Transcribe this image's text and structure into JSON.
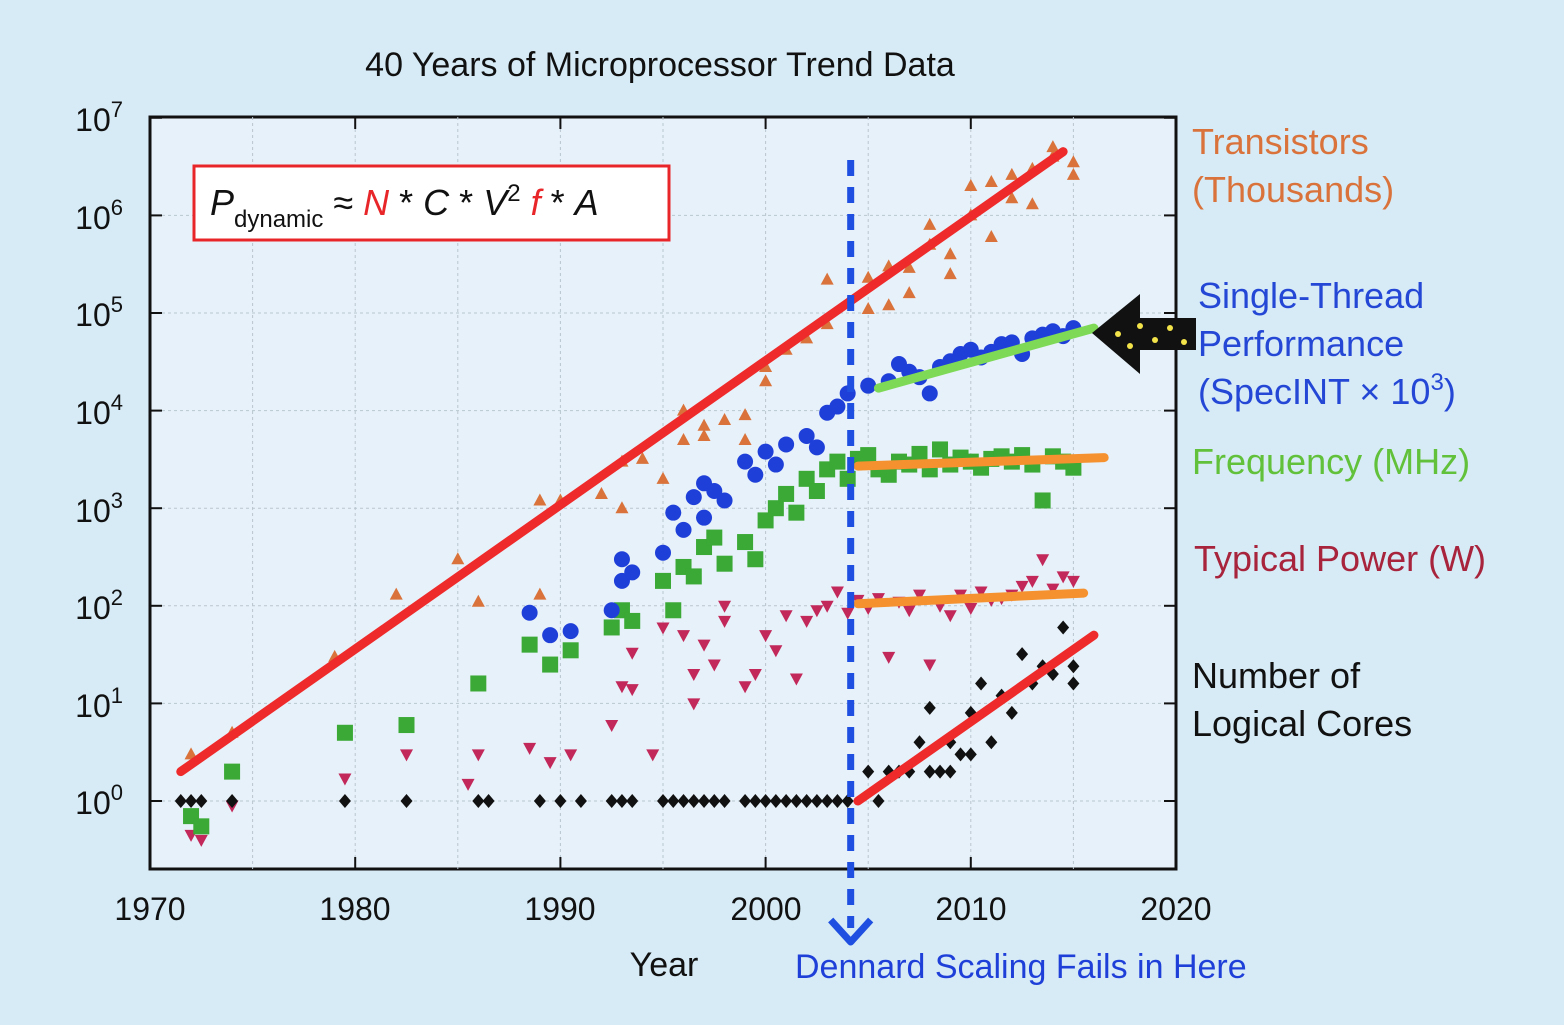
{
  "chart_data": {
    "type": "scatter",
    "title": "40 Years of Microprocessor Trend Data",
    "xlabel": "Year",
    "ylabel": "",
    "xlim": [
      1970,
      2020
    ],
    "ylim": [
      0.3,
      10000000
    ],
    "yscale": "log",
    "grid": true,
    "x_ticks": [
      "1970",
      "1980",
      "1990",
      "2000",
      "2010",
      "2020"
    ],
    "y_ticks": [
      {
        "base": "10",
        "exp": "0",
        "value": 1
      },
      {
        "base": "10",
        "exp": "1",
        "value": 10
      },
      {
        "base": "10",
        "exp": "2",
        "value": 100
      },
      {
        "base": "10",
        "exp": "3",
        "value": 1000
      },
      {
        "base": "10",
        "exp": "4",
        "value": 10000
      },
      {
        "base": "10",
        "exp": "5",
        "value": 100000
      },
      {
        "base": "10",
        "exp": "6",
        "value": 1000000
      },
      {
        "base": "10",
        "exp": "7",
        "value": 10000000
      }
    ],
    "formula": {
      "p": "P",
      "sub": "dynamic",
      "approx": " ≈ ",
      "n": "N",
      "star1": " * ",
      "c": "C",
      "star2": " * ",
      "v": "V",
      "sup": "2",
      "f": " f",
      "star3": " * ",
      "a": "A"
    },
    "series_labels": {
      "transistors": [
        "Transistors",
        "(Thousands)"
      ],
      "single_thread": [
        "Single-Thread",
        "Performance",
        "(SpecINT × 10",
        "3",
        ")"
      ],
      "frequency": [
        "Frequency (MHz)"
      ],
      "power": [
        "Typical Power (W)"
      ],
      "cores": [
        "Number of",
        "Logical Cores"
      ]
    },
    "annotation": "Dennard Scaling Fails in Here",
    "dennard_year": 2004,
    "colors": {
      "transistors": "#d9733b",
      "single_thread": "#1f3fd9",
      "frequency": "#3aa935",
      "power": "#c2285a",
      "cores": "#111111",
      "trend_red": "#ee2a2a",
      "trend_green": "#7ed957",
      "trend_orange": "#f5922f",
      "dennard": "#1f4fe0",
      "transistors_label": "#d9733b",
      "single_thread_label": "#2547d6",
      "frequency_label": "#62c13a",
      "power_label": "#a8233c",
      "cores_label": "#111111",
      "annotation_label": "#1f3fd9"
    },
    "series": [
      {
        "name": "Transistors (Thousands)",
        "marker": "triangle-up",
        "points": [
          [
            1972,
            3
          ],
          [
            1974,
            5
          ],
          [
            1979,
            30
          ],
          [
            1982,
            130
          ],
          [
            1985,
            300
          ],
          [
            1986,
            110
          ],
          [
            1989,
            130
          ],
          [
            1989,
            1200
          ],
          [
            1990,
            1200
          ],
          [
            1992,
            1400
          ],
          [
            1993,
            1000
          ],
          [
            1993,
            3000
          ],
          [
            1994,
            3200
          ],
          [
            1995,
            2000
          ],
          [
            1996,
            5000
          ],
          [
            1996,
            10000
          ],
          [
            1997,
            7000
          ],
          [
            1997,
            5500
          ],
          [
            1998,
            8000
          ],
          [
            1999,
            9000
          ],
          [
            1999,
            5000
          ],
          [
            2000,
            20000
          ],
          [
            2000,
            28000
          ],
          [
            2001,
            42000
          ],
          [
            2002,
            55000
          ],
          [
            2003,
            77000
          ],
          [
            2003,
            220000
          ],
          [
            2004,
            125000
          ],
          [
            2005,
            230000
          ],
          [
            2005,
            110000
          ],
          [
            2006,
            300000
          ],
          [
            2006,
            120000
          ],
          [
            2007,
            160000
          ],
          [
            2007,
            290000
          ],
          [
            2008,
            500000
          ],
          [
            2008,
            800000
          ],
          [
            2009,
            400000
          ],
          [
            2009,
            250000
          ],
          [
            2010,
            1000000
          ],
          [
            2010,
            2000000
          ],
          [
            2011,
            600000
          ],
          [
            2011,
            2200000
          ],
          [
            2012,
            1500000
          ],
          [
            2012,
            2600000
          ],
          [
            2013,
            1300000
          ],
          [
            2013,
            3000000
          ],
          [
            2014,
            5000000
          ],
          [
            2014,
            4000000
          ],
          [
            2015,
            3500000
          ],
          [
            2015,
            2600000
          ]
        ]
      },
      {
        "name": "Single-Thread Performance (SpecINT x 10^3)",
        "marker": "circle",
        "points": [
          [
            1988.5,
            85
          ],
          [
            1989.5,
            50
          ],
          [
            1990.5,
            55
          ],
          [
            1992.5,
            90
          ],
          [
            1993,
            300
          ],
          [
            1993,
            180
          ],
          [
            1993.5,
            220
          ],
          [
            1995,
            350
          ],
          [
            1995.5,
            900
          ],
          [
            1996,
            600
          ],
          [
            1996.5,
            1300
          ],
          [
            1997,
            1800
          ],
          [
            1997,
            800
          ],
          [
            1997.5,
            1500
          ],
          [
            1998,
            1200
          ],
          [
            1999,
            3000
          ],
          [
            1999.5,
            2200
          ],
          [
            2000,
            3800
          ],
          [
            2000.5,
            2800
          ],
          [
            2001,
            4500
          ],
          [
            2002,
            5500
          ],
          [
            2002.5,
            4200
          ],
          [
            2003,
            9500
          ],
          [
            2003.5,
            11000
          ],
          [
            2004,
            15000
          ],
          [
            2005,
            18000
          ],
          [
            2006,
            20000
          ],
          [
            2006.5,
            30000
          ],
          [
            2007,
            25000
          ],
          [
            2007.5,
            22000
          ],
          [
            2008,
            15000
          ],
          [
            2008.5,
            28000
          ],
          [
            2009,
            32000
          ],
          [
            2009.5,
            38000
          ],
          [
            2010,
            42000
          ],
          [
            2010.5,
            35000
          ],
          [
            2011,
            40000
          ],
          [
            2011.5,
            48000
          ],
          [
            2012,
            50000
          ],
          [
            2012.5,
            38000
          ],
          [
            2013,
            55000
          ],
          [
            2013.5,
            60000
          ],
          [
            2014,
            65000
          ],
          [
            2014.5,
            58000
          ],
          [
            2015,
            70000
          ]
        ]
      },
      {
        "name": "Frequency (MHz)",
        "marker": "square",
        "points": [
          [
            1972,
            0.7
          ],
          [
            1972.5,
            0.55
          ],
          [
            1974,
            2
          ],
          [
            1979.5,
            5
          ],
          [
            1982.5,
            6
          ],
          [
            1986,
            16
          ],
          [
            1988.5,
            40
          ],
          [
            1989.5,
            25
          ],
          [
            1990.5,
            35
          ],
          [
            1992.5,
            60
          ],
          [
            1993,
            90
          ],
          [
            1993.5,
            70
          ],
          [
            1995,
            180
          ],
          [
            1995.5,
            90
          ],
          [
            1996,
            250
          ],
          [
            1996.5,
            200
          ],
          [
            1997,
            400
          ],
          [
            1997.5,
            500
          ],
          [
            1998,
            270
          ],
          [
            1999,
            450
          ],
          [
            1999.5,
            300
          ],
          [
            2000,
            750
          ],
          [
            2000.5,
            1000
          ],
          [
            2001,
            1400
          ],
          [
            2001.5,
            900
          ],
          [
            2002,
            2000
          ],
          [
            2002.5,
            1500
          ],
          [
            2003,
            2500
          ],
          [
            2003.5,
            3000
          ],
          [
            2004,
            2000
          ],
          [
            2004.5,
            3200
          ],
          [
            2005,
            3500
          ],
          [
            2005.5,
            2500
          ],
          [
            2006,
            2200
          ],
          [
            2006.5,
            3000
          ],
          [
            2007,
            2800
          ],
          [
            2007.5,
            3600
          ],
          [
            2008,
            2500
          ],
          [
            2008.5,
            4000
          ],
          [
            2009,
            2800
          ],
          [
            2009.5,
            3300
          ],
          [
            2010,
            3000
          ],
          [
            2010.5,
            2600
          ],
          [
            2011,
            3200
          ],
          [
            2011.5,
            3400
          ],
          [
            2012,
            3000
          ],
          [
            2012.5,
            3500
          ],
          [
            2013,
            2800
          ],
          [
            2013.5,
            1200
          ],
          [
            2014,
            3400
          ],
          [
            2014.5,
            3000
          ],
          [
            2015,
            2600
          ]
        ]
      },
      {
        "name": "Typical Power (W)",
        "marker": "triangle-down",
        "points": [
          [
            1972,
            0.45
          ],
          [
            1972.5,
            0.4
          ],
          [
            1974,
            0.9
          ],
          [
            1979.5,
            1.7
          ],
          [
            1982.5,
            3
          ],
          [
            1985.5,
            1.5
          ],
          [
            1986,
            3
          ],
          [
            1988.5,
            3.5
          ],
          [
            1989.5,
            2.5
          ],
          [
            1990.5,
            3
          ],
          [
            1992.5,
            6
          ],
          [
            1993,
            15
          ],
          [
            1993.5,
            14
          ],
          [
            1993.5,
            33
          ],
          [
            1994.5,
            3
          ],
          [
            1995,
            60
          ],
          [
            1996,
            50
          ],
          [
            1996.5,
            10
          ],
          [
            1996.5,
            20
          ],
          [
            1997,
            40
          ],
          [
            1997.5,
            25
          ],
          [
            1998,
            70
          ],
          [
            1998,
            100
          ],
          [
            1999,
            15
          ],
          [
            1999.5,
            20
          ],
          [
            2000,
            50
          ],
          [
            2000.5,
            35
          ],
          [
            2001,
            80
          ],
          [
            2001.5,
            18
          ],
          [
            2002,
            70
          ],
          [
            2002.5,
            90
          ],
          [
            2003,
            100
          ],
          [
            2003.5,
            140
          ],
          [
            2004,
            85
          ],
          [
            2004.5,
            115
          ],
          [
            2005,
            95
          ],
          [
            2005.5,
            120
          ],
          [
            2006,
            30
          ],
          [
            2006.5,
            110
          ],
          [
            2007,
            90
          ],
          [
            2007.5,
            130
          ],
          [
            2008,
            25
          ],
          [
            2008.5,
            100
          ],
          [
            2009,
            80
          ],
          [
            2009.5,
            130
          ],
          [
            2010,
            95
          ],
          [
            2010.5,
            140
          ],
          [
            2011,
            115
          ],
          [
            2011.5,
            120
          ],
          [
            2012,
            130
          ],
          [
            2012.5,
            160
          ],
          [
            2013,
            180
          ],
          [
            2013.5,
            300
          ],
          [
            2014,
            150
          ],
          [
            2014.5,
            200
          ],
          [
            2015,
            180
          ]
        ]
      },
      {
        "name": "Number of Logical Cores",
        "marker": "diamond",
        "points": [
          [
            1971.5,
            1
          ],
          [
            1972,
            1
          ],
          [
            1972.5,
            1
          ],
          [
            1974,
            1
          ],
          [
            1979.5,
            1
          ],
          [
            1982.5,
            1
          ],
          [
            1986,
            1
          ],
          [
            1986.5,
            1
          ],
          [
            1989,
            1
          ],
          [
            1990,
            1
          ],
          [
            1991,
            1
          ],
          [
            1992.5,
            1
          ],
          [
            1993,
            1
          ],
          [
            1993.5,
            1
          ],
          [
            1995,
            1
          ],
          [
            1995.5,
            1
          ],
          [
            1996,
            1
          ],
          [
            1996.5,
            1
          ],
          [
            1997,
            1
          ],
          [
            1997.5,
            1
          ],
          [
            1998,
            1
          ],
          [
            1999,
            1
          ],
          [
            1999.5,
            1
          ],
          [
            2000,
            1
          ],
          [
            2000.5,
            1
          ],
          [
            2001,
            1
          ],
          [
            2001.5,
            1
          ],
          [
            2002,
            1
          ],
          [
            2002.5,
            1
          ],
          [
            2003,
            1
          ],
          [
            2003.5,
            1
          ],
          [
            2004,
            1
          ],
          [
            2005,
            2
          ],
          [
            2005.5,
            1
          ],
          [
            2006,
            2
          ],
          [
            2006.5,
            2
          ],
          [
            2007,
            2
          ],
          [
            2007.5,
            4
          ],
          [
            2008,
            2
          ],
          [
            2008,
            9
          ],
          [
            2008.5,
            2
          ],
          [
            2009,
            2
          ],
          [
            2009,
            4
          ],
          [
            2009.5,
            3
          ],
          [
            2010,
            3
          ],
          [
            2010,
            8
          ],
          [
            2010.5,
            16
          ],
          [
            2011,
            4
          ],
          [
            2011.5,
            12
          ],
          [
            2012,
            8
          ],
          [
            2012.5,
            32
          ],
          [
            2013,
            16
          ],
          [
            2013.5,
            24
          ],
          [
            2014,
            20
          ],
          [
            2014.5,
            60
          ],
          [
            2015,
            24
          ],
          [
            2015,
            16
          ]
        ]
      }
    ],
    "trend_lines": [
      {
        "name": "transistor-trend-line",
        "color_key": "trend_red",
        "from": [
          1971.5,
          2
        ],
        "to": [
          2014.5,
          4500000
        ]
      },
      {
        "name": "single-thread-trend-line",
        "color_key": "trend_green",
        "from": [
          2005.5,
          17000
        ],
        "to": [
          2016,
          70000
        ]
      },
      {
        "name": "frequency-trend-line",
        "color_key": "trend_orange",
        "from": [
          2004.5,
          2700
        ],
        "to": [
          2016.5,
          3300
        ]
      },
      {
        "name": "power-trend-line",
        "color_key": "trend_orange",
        "from": [
          2004.5,
          105
        ],
        "to": [
          2015.5,
          135
        ]
      },
      {
        "name": "cores-trend-line",
        "color_key": "trend_red",
        "from": [
          2004.5,
          1
        ],
        "to": [
          2016,
          50
        ]
      }
    ]
  }
}
